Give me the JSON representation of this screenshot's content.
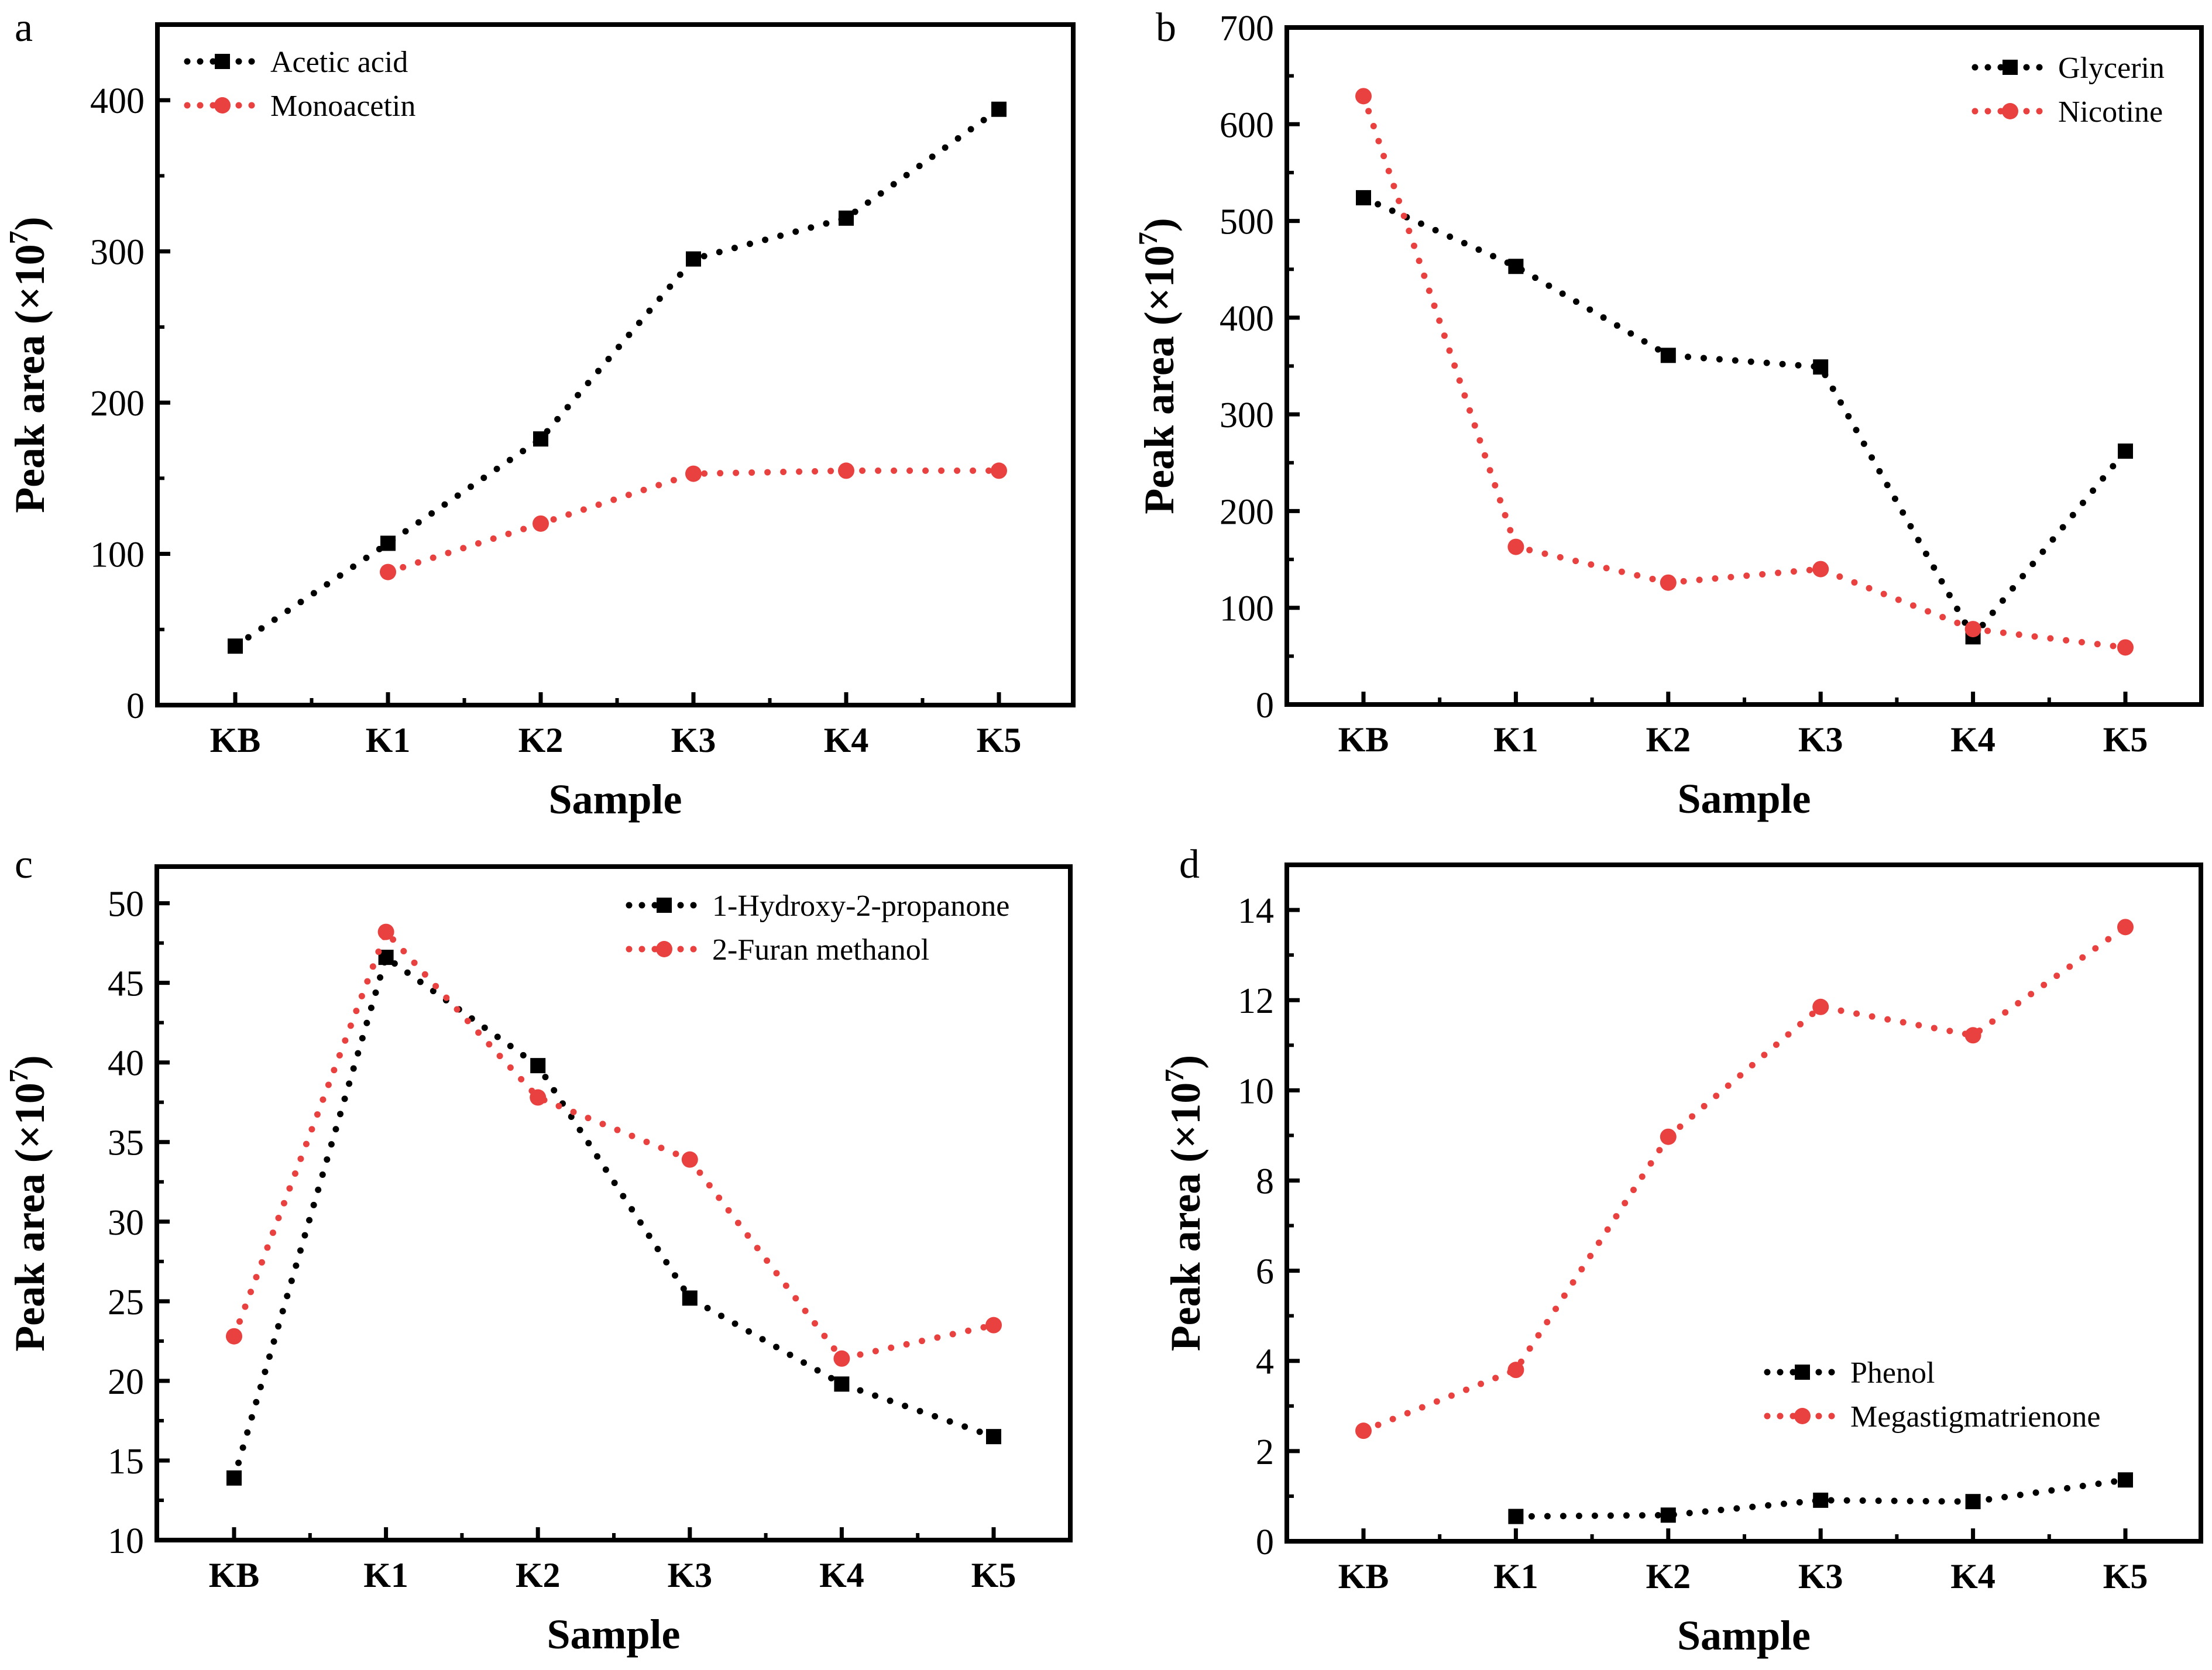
{
  "figure": {
    "panels": [
      "a",
      "b",
      "c",
      "d"
    ]
  },
  "colors": {
    "black_series": "#000000",
    "red_series": "#e8413f"
  },
  "chart_data": [
    {
      "panel": "a",
      "type": "line",
      "categories": [
        "KB",
        "K1",
        "K2",
        "K3",
        "K4",
        "K5"
      ],
      "xlabel": "Sample",
      "ylabel": "Peak area (×10⁷)",
      "ylabel_base": "Peak area (×10",
      "ylabel_sup": "7",
      "ylabel_close": ")",
      "ylim": [
        0,
        450
      ],
      "yticks": [
        0,
        100,
        200,
        300,
        400
      ],
      "yminor_step": 50,
      "legend_position": "top-left",
      "series": [
        {
          "name": "Acetic acid",
          "color": "#000000",
          "marker": "square",
          "linestyle": "dotted",
          "values": [
            39,
            107,
            176,
            295,
            322,
            394
          ]
        },
        {
          "name": "Monoacetin",
          "color": "#e8413f",
          "marker": "circle",
          "linestyle": "dotted",
          "values": [
            null,
            88,
            120,
            153,
            155,
            155
          ]
        }
      ]
    },
    {
      "panel": "b",
      "type": "line",
      "categories": [
        "KB",
        "K1",
        "K2",
        "K3",
        "K4",
        "K5"
      ],
      "xlabel": "Sample",
      "ylabel": "Peak area (×10⁷)",
      "ylabel_base": "Peak area (×10",
      "ylabel_sup": "7",
      "ylabel_close": ")",
      "ylim": [
        0,
        700
      ],
      "yticks": [
        0,
        100,
        200,
        300,
        400,
        500,
        600,
        700
      ],
      "yminor_step": 50,
      "legend_position": "top-right",
      "series": [
        {
          "name": "Glycerin",
          "color": "#000000",
          "marker": "square",
          "linestyle": "dotted",
          "values": [
            524,
            453,
            361,
            349,
            70,
            262
          ]
        },
        {
          "name": "Nicotine",
          "color": "#e8413f",
          "marker": "circle",
          "linestyle": "dotted",
          "values": [
            629,
            163,
            126,
            140,
            78,
            59
          ]
        }
      ]
    },
    {
      "panel": "c",
      "type": "line",
      "categories": [
        "KB",
        "K1",
        "K2",
        "K3",
        "K4",
        "K5"
      ],
      "xlabel": "Sample",
      "ylabel": "Peak area (×10⁷)",
      "ylabel_base": "Peak area (×10",
      "ylabel_sup": "7",
      "ylabel_close": ")",
      "ylim": [
        10,
        52.3
      ],
      "yticks": [
        10,
        15,
        20,
        25,
        30,
        35,
        40,
        45,
        50
      ],
      "yminor_step": 2.5,
      "legend_position": "top-right",
      "series": [
        {
          "name": "1-Hydroxy-2-propanone",
          "color": "#000000",
          "marker": "square",
          "linestyle": "dotted",
          "values": [
            13.9,
            46.6,
            39.8,
            25.2,
            19.8,
            16.5
          ]
        },
        {
          "name": "2-Furan methanol",
          "color": "#e8413f",
          "marker": "circle",
          "linestyle": "dotted",
          "values": [
            22.8,
            48.2,
            37.8,
            33.9,
            21.4,
            23.5
          ]
        }
      ]
    },
    {
      "panel": "d",
      "type": "line",
      "categories": [
        "KB",
        "K1",
        "K2",
        "K3",
        "K4",
        "K5"
      ],
      "xlabel": "Sample",
      "ylabel": "Peak area (×10⁷)",
      "ylabel_base": "Peak area (×10",
      "ylabel_sup": "7",
      "ylabel_close": ")",
      "ylim": [
        0,
        15
      ],
      "yticks": [
        0,
        2,
        4,
        6,
        8,
        10,
        12,
        14
      ],
      "yminor_step": 1,
      "legend_position": "lower-right",
      "series": [
        {
          "name": "Phenol",
          "color": "#000000",
          "marker": "square",
          "linestyle": "dotted",
          "values": [
            null,
            0.55,
            0.58,
            0.91,
            0.88,
            1.36
          ]
        },
        {
          "name": "Megastigmatrienone",
          "color": "#e8413f",
          "marker": "circle",
          "linestyle": "dotted",
          "values": [
            2.45,
            3.8,
            8.97,
            11.85,
            11.22,
            13.62
          ]
        }
      ]
    }
  ]
}
